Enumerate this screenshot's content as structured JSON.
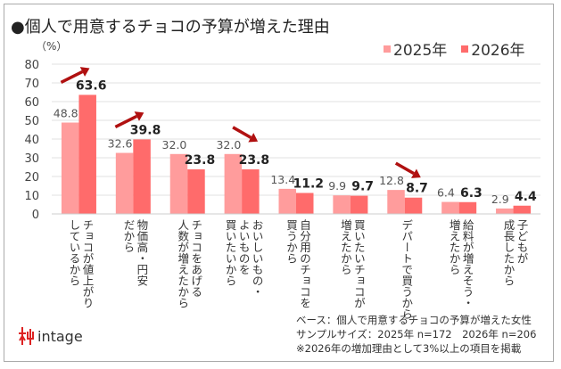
{
  "title": "●個人で用意するチョコの予算が増えた理由",
  "chart_data": {
    "type": "bar",
    "title": "●個人で用意するチョコの予算が増えた理由",
    "ylabel": "（%）",
    "ylim": [
      0,
      80
    ],
    "yticks": [
      0,
      10,
      20,
      30,
      40,
      50,
      60,
      70,
      80
    ],
    "grid": true,
    "legend_position": "top-right",
    "categories": [
      [
        "チョコが値上がり",
        "しているから"
      ],
      [
        "物価高・円安",
        "だから"
      ],
      [
        "チョコをあげる",
        "人数が増えたから"
      ],
      [
        "おいしいもの・",
        "よいものを",
        "買いたいから"
      ],
      [
        "自分用のチョコを",
        "買うから"
      ],
      [
        "買いたいチョコが",
        "増えたから"
      ],
      [
        "デパートで買うから"
      ],
      [
        "給料が増えそう・",
        "増えたから"
      ],
      [
        "子どもが",
        "成長したから"
      ]
    ],
    "series": [
      {
        "name": "2025年",
        "color": "#ff9c9c",
        "values": [
          48.8,
          32.6,
          32.0,
          32.0,
          13.4,
          9.9,
          12.8,
          6.4,
          2.9
        ]
      },
      {
        "name": "2026年",
        "color": "#ff6b6b",
        "values": [
          63.6,
          39.8,
          23.8,
          23.8,
          11.2,
          9.7,
          8.7,
          6.3,
          4.4
        ]
      }
    ],
    "annotations": [
      {
        "category_index": 0,
        "arrow": "up"
      },
      {
        "category_index": 1,
        "arrow": "up"
      },
      {
        "category_index": 3,
        "arrow": "down"
      },
      {
        "category_index": 6,
        "arrow": "down"
      }
    ],
    "arrow_color": "#b01010"
  },
  "logo": "intage",
  "notes": [
    "ベース：個人で用意するチョコの予算が増えた女性",
    "サンプルサイズ：2025年 n=172　2026年 n=206",
    "※2026年の増加理由として3%以上の項目を掲載"
  ]
}
